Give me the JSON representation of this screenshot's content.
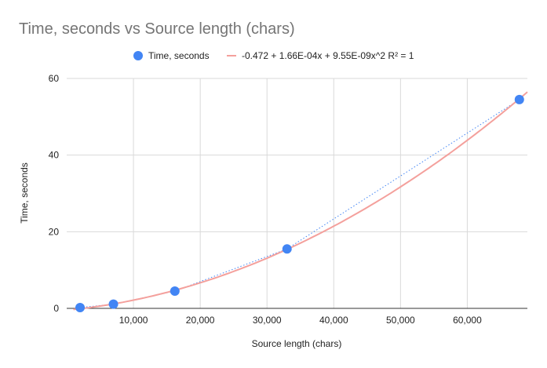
{
  "chart_data": {
    "type": "scatter",
    "title": "Time, seconds vs Source length (chars)",
    "xlabel": "Source length (chars)",
    "ylabel": "Time, seconds",
    "xlim": [
      0,
      69000
    ],
    "ylim": [
      0,
      60
    ],
    "x_ticks": [
      10000,
      20000,
      30000,
      40000,
      50000,
      60000
    ],
    "x_tick_labels": [
      "10,000",
      "20,000",
      "30,000",
      "40,000",
      "50,000",
      "60,000"
    ],
    "y_ticks": [
      0,
      20,
      40,
      60
    ],
    "y_tick_labels": [
      "0",
      "20",
      "40",
      "60"
    ],
    "grid": true,
    "legend_position": "top",
    "series": [
      {
        "name": "Time, seconds",
        "color": "#4285f4",
        "points": [
          {
            "x": 2000,
            "y": 0.2
          },
          {
            "x": 7000,
            "y": 1.1
          },
          {
            "x": 16200,
            "y": 4.5
          },
          {
            "x": 33000,
            "y": 15.5
          },
          {
            "x": 67800,
            "y": 54.5
          }
        ]
      }
    ],
    "trendline": {
      "label": "-0.472 + 1.66E-04x + 9.55E-09x^2 R² = 1",
      "color": "#f4a09c",
      "type": "polynomial",
      "coefficients": [
        -0.472,
        0.000166,
        9.55e-09
      ]
    },
    "connector_color": "#4285f4"
  }
}
